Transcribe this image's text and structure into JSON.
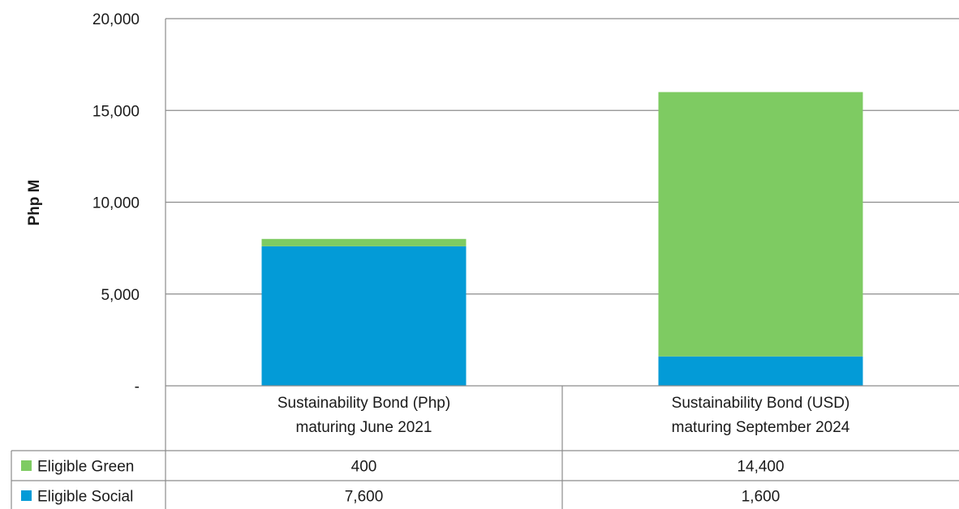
{
  "chart_data": {
    "type": "bar",
    "stacked": true,
    "ylabel": "Php M",
    "ylim": [
      0,
      20000
    ],
    "yticks": [
      0,
      5000,
      10000,
      15000,
      20000
    ],
    "ytick_labels": [
      "-",
      "5,000",
      "10,000",
      "15,000",
      "20,000"
    ],
    "grid": true,
    "legend_placement": "data table below chart",
    "categories": [
      [
        "Sustainability Bond (Php)",
        "maturing June 2021"
      ],
      [
        "Sustainability Bond (USD)",
        "maturing September 2024"
      ]
    ],
    "series": [
      {
        "name": "Eligible Social",
        "color": "#039bd7",
        "values": [
          7600,
          1600
        ],
        "value_labels": [
          "7,600",
          "1,600"
        ]
      },
      {
        "name": "Eligible Green",
        "color": "#7ecb62",
        "values": [
          400,
          14400
        ],
        "value_labels": [
          "400",
          "14,400"
        ]
      }
    ],
    "table_rows_order": [
      "Eligible Green",
      "Eligible Social"
    ]
  }
}
